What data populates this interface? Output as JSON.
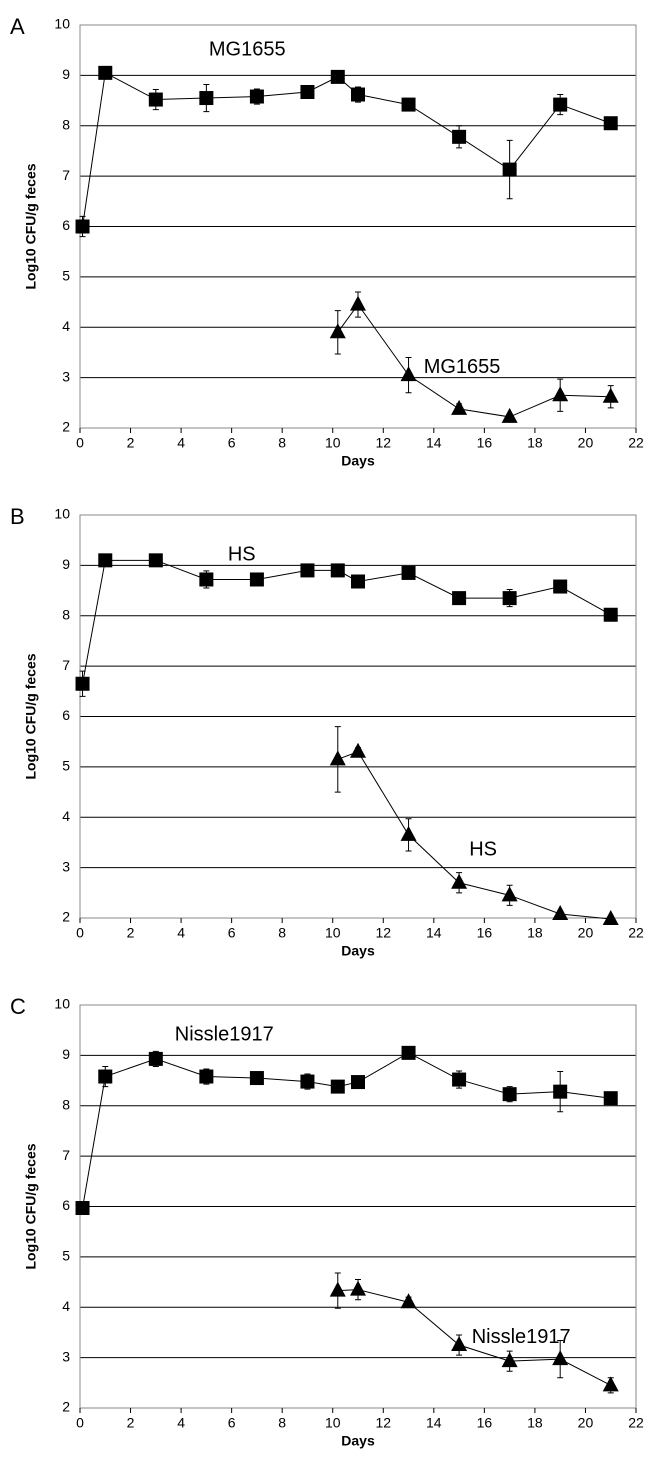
{
  "chart_data": [
    {
      "type": "line",
      "panel": "A",
      "xlabel": "Days",
      "ylabel": "Log10 CFU/g feces",
      "xlim": [
        0,
        22
      ],
      "xticks": [
        0,
        2,
        4,
        6,
        8,
        10,
        12,
        14,
        16,
        18,
        20,
        22
      ],
      "ylim": [
        2,
        10
      ],
      "yticks": [
        2,
        3,
        4,
        5,
        6,
        7,
        8,
        9,
        10
      ],
      "grid": "y",
      "color": "#000000",
      "annotations": [
        "MG1655",
        "MG1655"
      ],
      "series": [
        {
          "marker": "square",
          "x": [
            0.1,
            1,
            3,
            5,
            7,
            9,
            10.2,
            11,
            13,
            15,
            17,
            19,
            21
          ],
          "values": [
            6.0,
            9.05,
            8.52,
            8.55,
            8.58,
            8.67,
            8.97,
            8.62,
            8.42,
            7.78,
            7.13,
            8.42,
            8.05
          ],
          "errors": [
            0.2,
            0.05,
            0.2,
            0.27,
            0.15,
            0.08,
            0.1,
            0.15,
            0.08,
            0.22,
            0.58,
            0.2,
            0.05
          ]
        },
        {
          "marker": "triangle",
          "x": [
            10.2,
            11,
            13,
            15,
            17,
            19,
            21
          ],
          "values": [
            3.9,
            4.45,
            3.05,
            2.38,
            2.22,
            2.65,
            2.62
          ],
          "errors": [
            0.43,
            0.25,
            0.35,
            0.1,
            0.05,
            0.32,
            0.22
          ]
        }
      ]
    },
    {
      "type": "line",
      "panel": "B",
      "xlabel": "Days",
      "ylabel": "Log10 CFU/g feces",
      "xlim": [
        0,
        22
      ],
      "xticks": [
        0,
        2,
        4,
        6,
        8,
        10,
        12,
        14,
        16,
        18,
        20,
        22
      ],
      "ylim": [
        2,
        10
      ],
      "yticks": [
        2,
        3,
        4,
        5,
        6,
        7,
        8,
        9,
        10
      ],
      "grid": "y",
      "color": "#000000",
      "annotations": [
        "HS",
        "HS"
      ],
      "series": [
        {
          "marker": "square",
          "x": [
            0.1,
            1,
            3,
            5,
            7,
            9,
            10.2,
            11,
            13,
            15,
            17,
            19,
            21
          ],
          "values": [
            6.65,
            9.1,
            9.1,
            8.72,
            8.72,
            8.9,
            8.9,
            8.68,
            8.85,
            8.35,
            8.35,
            8.58,
            8.02
          ],
          "errors": [
            0.25,
            0.08,
            0.1,
            0.17,
            0.05,
            0.05,
            0.05,
            0.05,
            0.1,
            0.1,
            0.17,
            0.05,
            0.05
          ]
        },
        {
          "marker": "triangle",
          "x": [
            10.2,
            11,
            13,
            15,
            17,
            19,
            21
          ],
          "values": [
            5.15,
            5.3,
            3.65,
            2.7,
            2.45,
            2.08,
            1.98
          ],
          "errors": [
            0.65,
            0.08,
            0.32,
            0.2,
            0.2,
            0.05,
            0.02
          ]
        }
      ]
    },
    {
      "type": "line",
      "panel": "C",
      "xlabel": "Days",
      "ylabel": "Log10 CFU/g feces",
      "xlim": [
        0,
        22
      ],
      "xticks": [
        0,
        2,
        4,
        6,
        8,
        10,
        12,
        14,
        16,
        18,
        20,
        22
      ],
      "ylim": [
        2,
        10
      ],
      "yticks": [
        2,
        3,
        4,
        5,
        6,
        7,
        8,
        9,
        10
      ],
      "grid": "y",
      "color": "#000000",
      "annotations": [
        "Nissle1917",
        "Nissle1917"
      ],
      "series": [
        {
          "marker": "square",
          "x": [
            0.1,
            1,
            3,
            5,
            7,
            9,
            10.2,
            11,
            13,
            15,
            17,
            19,
            21
          ],
          "values": [
            5.97,
            8.58,
            8.93,
            8.58,
            8.55,
            8.48,
            8.38,
            8.47,
            9.05,
            8.52,
            8.23,
            8.28,
            8.15
          ],
          "errors": [
            0.12,
            0.2,
            0.15,
            0.15,
            0.1,
            0.15,
            0.08,
            0.05,
            0.05,
            0.17,
            0.15,
            0.4,
            0.12
          ]
        },
        {
          "marker": "triangle",
          "x": [
            10.2,
            11,
            13,
            15,
            17,
            19,
            21
          ],
          "values": [
            4.33,
            4.35,
            4.1,
            3.25,
            2.93,
            2.97,
            2.45
          ],
          "errors": [
            0.35,
            0.2,
            0.1,
            0.2,
            0.2,
            0.37,
            0.15
          ]
        }
      ]
    }
  ]
}
